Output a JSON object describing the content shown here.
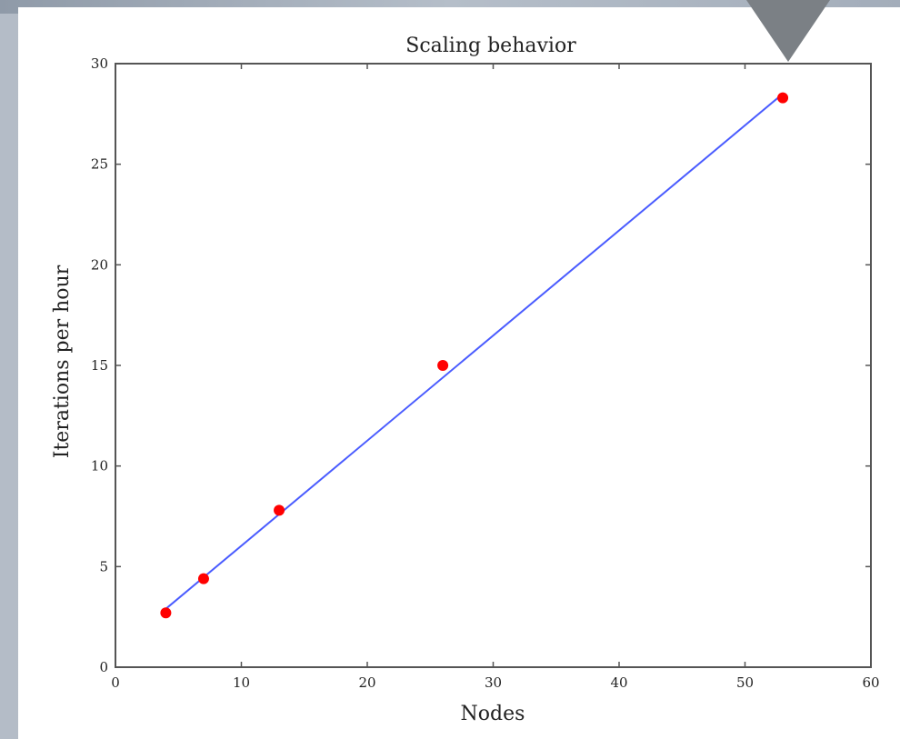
{
  "chart_data": {
    "type": "scatter",
    "title": "Scaling behavior",
    "xlabel": "Nodes",
    "ylabel": "Iterations per hour",
    "xlim": [
      0,
      60
    ],
    "ylim": [
      0,
      30
    ],
    "xticks": [
      "0",
      "10",
      "20",
      "30",
      "40",
      "50",
      "60"
    ],
    "yticks": [
      "0",
      "5",
      "10",
      "15",
      "20",
      "25",
      "30"
    ],
    "grid": false,
    "series": [
      {
        "type": "scatter",
        "color": "#ff0000",
        "points": [
          {
            "x": 4,
            "y": 2.7
          },
          {
            "x": 7,
            "y": 4.4
          },
          {
            "x": 13,
            "y": 7.8
          },
          {
            "x": 26,
            "y": 15.0
          },
          {
            "x": 53,
            "y": 28.3
          }
        ]
      },
      {
        "type": "line",
        "color": "#4a5cff",
        "points": [
          {
            "x": 4,
            "y": 2.9
          },
          {
            "x": 53,
            "y": 28.5
          }
        ]
      }
    ]
  }
}
